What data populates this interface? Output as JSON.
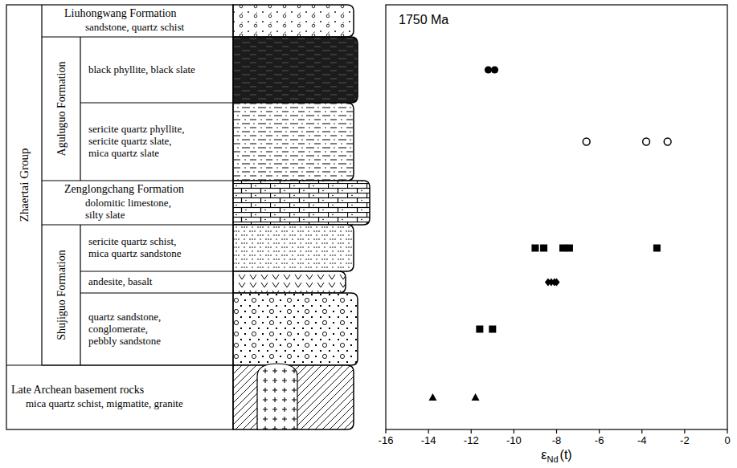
{
  "column": {
    "group": "Zhaertai Group",
    "formations": [
      {
        "name": "Liuhongwang Formation",
        "layers": [
          [
            "sandstone, quartz schist"
          ]
        ]
      },
      {
        "name": "Aguluguo Formation",
        "layers": [
          [
            "black phyllite, black slate"
          ],
          [
            "sericite quartz phyllite,",
            "sericite quartz slate,",
            "mica quartz slate"
          ]
        ]
      },
      {
        "name": "Zenglongchang Formation",
        "layers": [
          [
            "dolomitic limestone,",
            "silty slate"
          ]
        ]
      },
      {
        "name": "Shujiguo Formation",
        "layers": [
          [
            "sericite quartz schist,",
            "mica quartz sandstone"
          ],
          [
            "andesite, basalt"
          ],
          [
            "quartz sandstone,",
            "conglomerate,",
            "pebbly sandstone"
          ]
        ]
      }
    ],
    "basement": {
      "name": "Late Archean basement rocks",
      "layers": [
        [
          "mica quartz schist, migmatite, granite"
        ]
      ]
    }
  },
  "chart_data": {
    "type": "scatter",
    "annotation": "1750 Ma",
    "x_label": {
      "symbol": "ε",
      "subscript": "Nd",
      "suffix": "(t)"
    },
    "xlim": [
      -16,
      0
    ],
    "xticks": [
      -16,
      -14,
      -12,
      -10,
      -8,
      -6,
      -4,
      -2,
      0
    ],
    "grid": false,
    "series": [
      {
        "row": 1,
        "marker": "circle",
        "color": "#000000",
        "values": [
          -11.2,
          -10.9
        ]
      },
      {
        "row": 2,
        "marker": "circle-open",
        "color": "#000000",
        "values": [
          -6.6,
          -3.8,
          -2.8
        ]
      },
      {
        "row": 4,
        "marker": "square",
        "color": "#000000",
        "values": [
          -9.0,
          -8.6,
          -7.7,
          -7.4,
          -3.3
        ]
      },
      {
        "row": 5,
        "marker": "diamond",
        "color": "#000000",
        "values": [
          -8.4,
          -8.25,
          -8.1,
          -8.0
        ]
      },
      {
        "row": 6,
        "marker": "square",
        "color": "#000000",
        "values": [
          -11.6,
          -11.0
        ]
      },
      {
        "row": 7,
        "marker": "triangle",
        "color": "#000000",
        "values": [
          -13.8,
          -11.8
        ]
      }
    ]
  }
}
